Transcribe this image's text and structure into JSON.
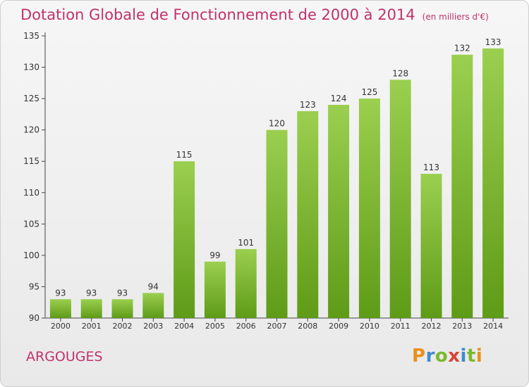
{
  "title": "Dotation Globale de Fonctionnement de 2000 à 2014",
  "unit": "(en milliers d'€)",
  "commune": "ARGOUGES",
  "logo": {
    "letters": [
      "P",
      "r",
      "o",
      "x",
      "i",
      "t",
      "i"
    ],
    "colors": [
      "#e8901c",
      "#3f8bd1",
      "#7cb82f",
      "#d94437",
      "#3f8bd1",
      "#7cb82f",
      "#e8901c"
    ]
  },
  "colors": {
    "accent": "#c0326c",
    "bar_light": "#9bcf4f",
    "bar_dark": "#5e9b17"
  },
  "chart_data": {
    "type": "bar",
    "title": "Dotation Globale de Fonctionnement de 2000 à 2014",
    "categories": [
      "2000",
      "2001",
      "2002",
      "2003",
      "2004",
      "2005",
      "2006",
      "2007",
      "2008",
      "2009",
      "2010",
      "2011",
      "2012",
      "2013",
      "2014"
    ],
    "values": [
      93,
      93,
      93,
      94,
      115,
      99,
      101,
      120,
      123,
      124,
      125,
      128,
      113,
      132,
      133
    ],
    "ylim": [
      90,
      135
    ],
    "yticks": [
      90,
      95,
      100,
      105,
      110,
      115,
      120,
      125,
      130,
      135
    ],
    "grid": false,
    "xlabel": "",
    "ylabel": ""
  }
}
